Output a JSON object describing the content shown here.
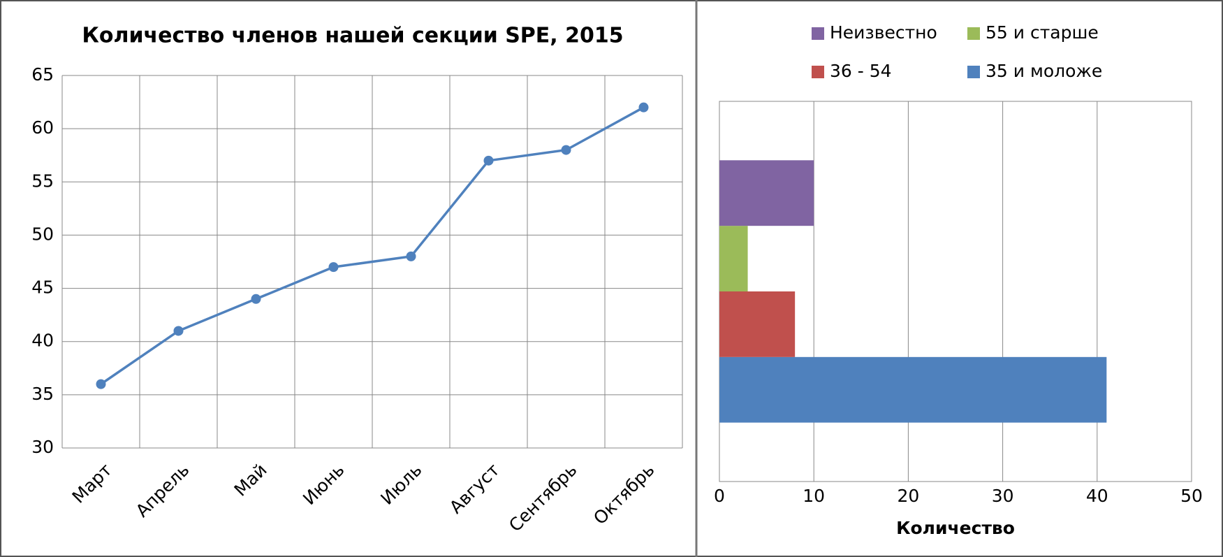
{
  "chart_data": [
    {
      "type": "line",
      "title": "Количество членов нашей секции SPE, 2015",
      "categories": [
        "Март",
        "Апрель",
        "Май",
        "Июнь",
        "Июль",
        "Август",
        "Сентябрь",
        "Октябрь"
      ],
      "series": [
        {
          "name": "Количество",
          "color": "#4f81bd",
          "values": [
            36,
            41,
            44,
            47,
            48,
            57,
            58,
            62
          ]
        }
      ],
      "ylim": [
        30,
        65
      ],
      "yticks": [
        30,
        35,
        40,
        45,
        50,
        55,
        60,
        65
      ],
      "grid": true
    },
    {
      "type": "hbar",
      "xlabel": "Количество",
      "categories": [
        null
      ],
      "series": [
        {
          "name": "35 и моложе",
          "color": "#4f81bd",
          "values": [
            41
          ]
        },
        {
          "name": "36 - 54",
          "color": "#c0504d",
          "values": [
            8
          ]
        },
        {
          "name": "55 и старше",
          "color": "#9bbb59",
          "values": [
            3
          ]
        },
        {
          "name": "Неизвестно",
          "color": "#8064a2",
          "values": [
            10
          ]
        }
      ],
      "xlim": [
        0,
        50
      ],
      "xticks": [
        0,
        10,
        20,
        30,
        40,
        50
      ],
      "grid": true,
      "legend": "top"
    }
  ]
}
